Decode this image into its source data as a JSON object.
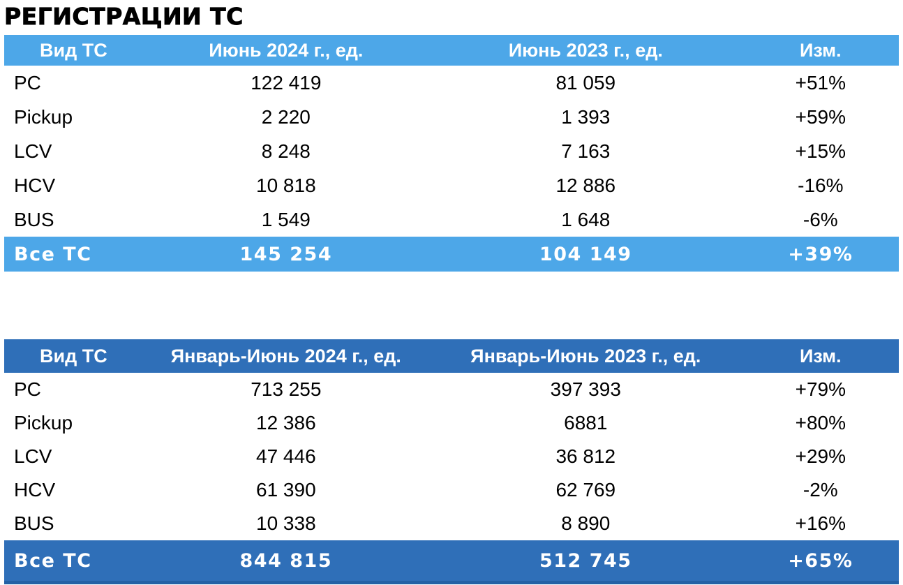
{
  "page": {
    "title": "РЕГИСТРАЦИИ ТС"
  },
  "colors": {
    "table1_accent": "#4DA7E8",
    "table2_accent": "#2F6FB8",
    "table2_bottom_border": "#2361A5",
    "header_text": "#FFFFFF",
    "body_text": "#000000",
    "background": "#FFFFFF"
  },
  "tables": [
    {
      "name": "june-monthly",
      "headers": {
        "type": "Вид ТС",
        "y2024": "Июнь 2024 г., ед.",
        "y2023": "Июнь 2023 г., ед.",
        "change": "Изм."
      },
      "rows": [
        {
          "type": "PC",
          "y2024": "122 419",
          "y2023": "81 059",
          "change": "+51%"
        },
        {
          "type": "Pickup",
          "y2024": "2 220",
          "y2023": "1 393",
          "change": "+59%"
        },
        {
          "type": "LCV",
          "y2024": "8 248",
          "y2023": "7 163",
          "change": "+15%"
        },
        {
          "type": "HCV",
          "y2024": "10 818",
          "y2023": "12 886",
          "change": "-16%"
        },
        {
          "type": "BUS",
          "y2024": "1 549",
          "y2023": "1 648",
          "change": "-6%"
        }
      ],
      "total": {
        "type": "Все ТС",
        "y2024": "145 254",
        "y2023": "104 149",
        "change": "+39%"
      }
    },
    {
      "name": "january-june-cumulative",
      "headers": {
        "type": "Вид ТС",
        "y2024": "Январь-Июнь 2024 г., ед.",
        "y2023": "Январь-Июнь 2023 г., ед.",
        "change": "Изм."
      },
      "rows": [
        {
          "type": "PC",
          "y2024": "713 255",
          "y2023": "397 393",
          "change": "+79%"
        },
        {
          "type": "Pickup",
          "y2024": "12 386",
          "y2023": "6881",
          "change": "+80%"
        },
        {
          "type": "LCV",
          "y2024": "47 446",
          "y2023": "36 812",
          "change": "+29%"
        },
        {
          "type": "HCV",
          "y2024": "61 390",
          "y2023": "62 769",
          "change": "-2%"
        },
        {
          "type": "BUS",
          "y2024": "10 338",
          "y2023": "8 890",
          "change": "+16%"
        }
      ],
      "total": {
        "type": "Все ТС",
        "y2024": "844 815",
        "y2023": "512 745",
        "change": "+65%"
      }
    }
  ]
}
